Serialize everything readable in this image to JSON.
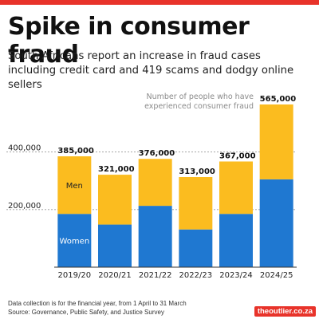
{
  "header": {
    "title": "Spike in consumer fraud",
    "subtitle": "South Africans report an increase in fraud cases including credit card and 419 scams and dodgy online sellers"
  },
  "footer": {
    "note": "Data collection is for the financial year, from 1 April to 31 March",
    "source": "Source: Governance, Public Safety, and Justice Survey",
    "brand": "theoutlier.co.za"
  },
  "colors": {
    "women": "#1f78d1",
    "men": "#fbbc1f",
    "accent": "#e8332a",
    "grid": "#999999"
  },
  "chart_data": {
    "type": "bar",
    "stacked": true,
    "title": "Spike in consumer fraud",
    "annotation": "Number of people who have experienced consumer fraud",
    "categories": [
      "2019/20",
      "2020/21",
      "2021/22",
      "2022/23",
      "2023/24",
      "2024/25"
    ],
    "series": [
      {
        "name": "Women",
        "values": [
          185000,
          148000,
          213000,
          131000,
          185000,
          305000
        ]
      },
      {
        "name": "Men",
        "values": [
          200000,
          173000,
          163000,
          182000,
          182000,
          260000
        ]
      }
    ],
    "total_labels": [
      "385,000",
      "321,000",
      "376,000",
      "313,000",
      "367,000",
      "565,000"
    ],
    "y_ticks": [
      200000,
      400000
    ],
    "y_tick_labels": [
      "200,000",
      "400,000"
    ],
    "ylim": [
      0,
      565000
    ],
    "grid": true,
    "legend": "inline-labels"
  }
}
